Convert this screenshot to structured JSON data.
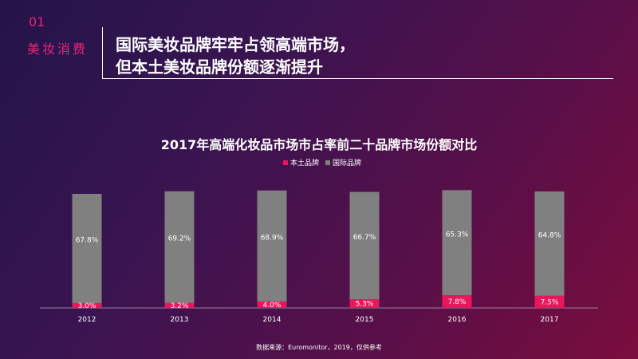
{
  "header": {
    "number": "01",
    "section": "美妆消费",
    "title_line1": "国际美妆品牌牢牢占领高端市场，",
    "title_line2": "但本土美妆品牌份额逐渐提升"
  },
  "source": "数据来源：Euromonitor，2019，仅供参考",
  "colors": {
    "domestic": "#e8175d",
    "international": "#808080",
    "accent": "#e8247a"
  },
  "chart_data": {
    "type": "bar",
    "stacked": true,
    "title": "2017年高端化妆品市场市占率前二十品牌市场份额对比",
    "categories": [
      "2012",
      "2013",
      "2014",
      "2015",
      "2016",
      "2017"
    ],
    "series": [
      {
        "name": "本土品牌",
        "values": [
          3.0,
          3.2,
          4.0,
          5.3,
          7.8,
          7.5
        ],
        "labels": [
          "3.0%",
          "3.2%",
          "4.0%",
          "5.3%",
          "7.8%",
          "7.5%"
        ]
      },
      {
        "name": "国际品牌",
        "values": [
          67.8,
          69.2,
          68.9,
          66.7,
          65.3,
          64.8
        ],
        "labels": [
          "67.8%",
          "69.2%",
          "68.9%",
          "66.7%",
          "65.3%",
          "64.8%"
        ]
      }
    ],
    "legend": "top-left",
    "grid": false
  }
}
